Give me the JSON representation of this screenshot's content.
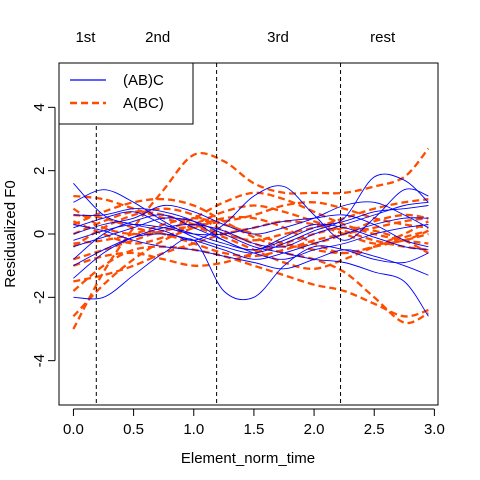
{
  "chart_data": {
    "type": "line",
    "title": "",
    "xlabel": "Element_norm_time",
    "ylabel": "Residualized F0",
    "xlim": [
      -0.12,
      3.03
    ],
    "ylim": [
      -5.4,
      5.4
    ],
    "xticks": [
      0.0,
      0.5,
      1.0,
      1.5,
      2.0,
      2.5,
      3.0
    ],
    "xtick_labels": [
      "0.0",
      "0.5",
      "1.0",
      "1.5",
      "2.0",
      "2.5",
      "3.0"
    ],
    "yticks": [
      -4,
      -2,
      0,
      2,
      4
    ],
    "ytick_labels": [
      "-4",
      "-2",
      "0",
      "2",
      "4"
    ],
    "grid": false,
    "legend_position": "top-left",
    "section_boundaries": [
      0.19,
      1.19,
      2.22
    ],
    "sections": [
      {
        "label": "1st",
        "x": 0.1
      },
      {
        "label": "2nd",
        "x": 0.7
      },
      {
        "label": "3rd",
        "x": 1.7
      },
      {
        "label": "rest",
        "x": 2.57
      }
    ],
    "x": [
      0.0,
      0.25,
      0.5,
      0.75,
      1.0,
      1.25,
      1.5,
      1.75,
      2.0,
      2.25,
      2.5,
      2.75,
      2.95
    ],
    "series": [
      {
        "name": "(AB)C",
        "color": "#0000ff",
        "line_style": "solid",
        "curves": [
          [
            1.6,
            0.6,
            0.3,
            0.1,
            -0.2,
            0.3,
            1.2,
            1.5,
            0.6,
            -0.2,
            0.5,
            1.4,
            1.2
          ],
          [
            -1.4,
            -0.6,
            -0.1,
            0.2,
            0.3,
            0.1,
            -0.3,
            -0.4,
            0.0,
            0.3,
            0.6,
            0.9,
            1.0
          ],
          [
            -2.0,
            -2.0,
            -1.3,
            -0.6,
            -0.2,
            -1.8,
            -2.0,
            -1.0,
            -0.4,
            -0.5,
            -0.8,
            -0.9,
            -0.6
          ],
          [
            0.2,
            0.5,
            0.7,
            0.3,
            0.0,
            -0.3,
            -0.5,
            -0.2,
            0.2,
            0.4,
            0.7,
            0.8,
            0.9
          ],
          [
            -0.8,
            0.0,
            0.4,
            0.6,
            0.2,
            -0.2,
            -0.6,
            -0.8,
            -0.5,
            -0.3,
            0.0,
            0.2,
            0.3
          ],
          [
            1.0,
            1.4,
            1.0,
            0.4,
            -0.1,
            -0.4,
            -0.6,
            -0.3,
            0.1,
            0.5,
            1.8,
            1.7,
            1.0
          ],
          [
            -0.4,
            -0.1,
            0.2,
            0.5,
            0.4,
            0.0,
            -0.4,
            -0.6,
            -0.8,
            -0.9,
            -1.2,
            -1.5,
            -2.6
          ],
          [
            0.6,
            0.6,
            0.8,
            0.7,
            0.4,
            -0.2,
            -0.5,
            -0.1,
            0.3,
            0.2,
            -0.1,
            -0.4,
            -0.5
          ],
          [
            -1.0,
            -0.5,
            -0.1,
            0.0,
            -0.2,
            -0.5,
            -0.8,
            -0.6,
            -0.3,
            0.0,
            0.3,
            0.5,
            0.5
          ],
          [
            0.0,
            0.3,
            0.5,
            0.9,
            0.7,
            0.3,
            0.0,
            0.2,
            0.5,
            0.9,
            1.0,
            0.6,
            0.2
          ],
          [
            0.3,
            0.1,
            -0.2,
            -0.4,
            -0.5,
            -0.7,
            -0.9,
            -1.1,
            -0.8,
            -0.5,
            -0.7,
            -1.0,
            -1.3
          ],
          [
            -0.2,
            0.1,
            0.3,
            0.2,
            0.0,
            0.0,
            0.2,
            0.4,
            0.5,
            0.6,
            0.3,
            -0.2,
            -0.4
          ]
        ]
      },
      {
        "name": "A(BC)",
        "color": "#ff4d00",
        "line_style": "dashed",
        "curves": [
          [
            -3.0,
            -1.2,
            0.2,
            1.4,
            2.5,
            2.3,
            1.6,
            1.3,
            1.3,
            1.3,
            1.5,
            1.8,
            2.7
          ],
          [
            -2.6,
            -1.6,
            -0.8,
            -0.2,
            0.2,
            0.5,
            0.5,
            0.2,
            -0.3,
            -0.6,
            -0.4,
            -0.2,
            0.0
          ],
          [
            0.6,
            0.5,
            0.2,
            0.0,
            -0.3,
            -0.6,
            -0.7,
            -0.5,
            -0.2,
            0.0,
            0.2,
            0.4,
            0.5
          ],
          [
            -0.4,
            0.2,
            0.6,
            0.8,
            0.6,
            0.1,
            -0.3,
            -0.6,
            -0.8,
            -1.2,
            -2.0,
            -2.8,
            -2.5
          ],
          [
            0.4,
            0.0,
            -0.3,
            -0.1,
            0.3,
            0.7,
            0.9,
            0.7,
            0.4,
            0.1,
            -0.2,
            -0.4,
            -0.5
          ],
          [
            -1.5,
            -1.3,
            -1.0,
            -0.6,
            -0.3,
            0.0,
            0.2,
            0.4,
            0.3,
            0.0,
            -0.3,
            -0.2,
            0.1
          ],
          [
            1.2,
            1.1,
            0.8,
            0.5,
            0.3,
            0.4,
            0.6,
            0.9,
            1.0,
            0.8,
            0.5,
            0.3,
            0.2
          ],
          [
            -0.8,
            -0.5,
            -0.2,
            0.1,
            0.2,
            -0.1,
            -0.5,
            -0.9,
            -1.1,
            -0.8,
            -0.4,
            0.0,
            0.4
          ],
          [
            0.0,
            0.4,
            0.7,
            0.6,
            0.3,
            0.0,
            -0.2,
            0.0,
            0.2,
            0.5,
            0.8,
            1.0,
            1.1
          ],
          [
            -1.8,
            -1.0,
            -0.5,
            -0.4,
            -0.5,
            -0.7,
            -1.0,
            -1.3,
            -1.6,
            -1.8,
            -2.2,
            -2.6,
            -2.4
          ],
          [
            0.8,
            0.2,
            0.0,
            0.1,
            0.5,
            1.0,
            1.3,
            1.1,
            0.7,
            0.3,
            0.0,
            -0.2,
            -0.3
          ],
          [
            -0.3,
            -0.2,
            0.0,
            0.3,
            0.5,
            0.3,
            0.0,
            -0.3,
            -0.5,
            -0.6,
            -0.4,
            -0.1,
            0.1
          ],
          [
            0.3,
            0.7,
            1.0,
            1.1,
            0.9,
            0.4,
            -0.1,
            -0.4,
            -0.3,
            0.0,
            0.4,
            0.6,
            0.5
          ],
          [
            -1.0,
            -0.7,
            -0.6,
            -0.8,
            -1.0,
            -0.9,
            -0.6,
            -0.3,
            0.0,
            0.2,
            0.1,
            -0.2,
            -0.6
          ]
        ]
      }
    ]
  }
}
